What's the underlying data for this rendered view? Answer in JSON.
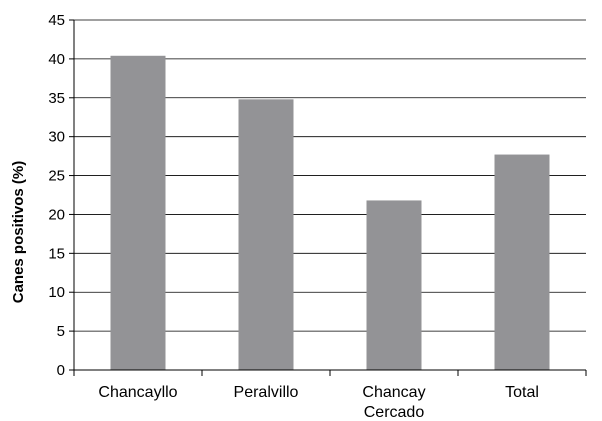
{
  "chart_data": {
    "type": "bar",
    "title": "",
    "xlabel": "",
    "ylabel": "Canes positivos (%)",
    "categories": [
      [
        "Chancayllo"
      ],
      [
        "Peralvillo"
      ],
      [
        "Chancay",
        "Cercado"
      ],
      [
        "Total"
      ]
    ],
    "values": [
      40.4,
      34.8,
      21.8,
      27.7
    ],
    "ylim": [
      0,
      45
    ],
    "yticks": [
      0,
      5,
      10,
      15,
      20,
      25,
      30,
      35,
      40,
      45
    ],
    "grid": true,
    "legend": "none",
    "bar_color": "#939396"
  }
}
